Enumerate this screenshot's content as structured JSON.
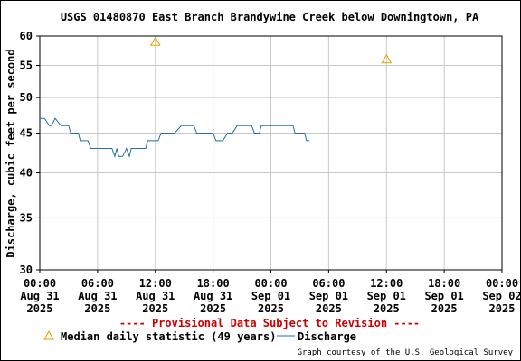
{
  "chart_data": {
    "type": "line",
    "title": "USGS 01480870 East Branch Brandywine Creek below Downingtown, PA",
    "ylabel": "Discharge, cubic feet per second",
    "xlabel": "",
    "y_scale": "log",
    "ylim": [
      30,
      60
    ],
    "y_ticks": [
      30,
      35,
      40,
      45,
      50,
      55,
      60
    ],
    "y_tick_labels": [
      "30",
      "35",
      "40",
      "45",
      "50",
      "55",
      "60"
    ],
    "x_range": [
      "2025-08-31 00:00",
      "2025-09-02 00:00"
    ],
    "x_ticks": [
      {
        "t": 0,
        "time": "00:00",
        "day": "Aug 31",
        "year": "2025"
      },
      {
        "t": 6,
        "time": "06:00",
        "day": "Aug 31",
        "year": "2025"
      },
      {
        "t": 12,
        "time": "12:00",
        "day": "Aug 31",
        "year": "2025"
      },
      {
        "t": 18,
        "time": "18:00",
        "day": "Aug 31",
        "year": "2025"
      },
      {
        "t": 24,
        "time": "00:00",
        "day": "Sep 01",
        "year": "2025"
      },
      {
        "t": 30,
        "time": "06:00",
        "day": "Sep 01",
        "year": "2025"
      },
      {
        "t": 36,
        "time": "12:00",
        "day": "Sep 01",
        "year": "2025"
      },
      {
        "t": 42,
        "time": "18:00",
        "day": "Sep 01",
        "year": "2025"
      },
      {
        "t": 48,
        "time": "00:00",
        "day": "Sep 02",
        "year": "2025"
      }
    ],
    "grid": true,
    "legend_position": "bottom",
    "series": [
      {
        "name": "Discharge",
        "color": "#1f6fa8",
        "style": "line",
        "x": [
          0,
          0.5,
          1.0,
          1.2,
          1.6,
          2.2,
          3.0,
          3.2,
          4.0,
          4.2,
          5.0,
          5.3,
          6.0,
          6.5,
          7.5,
          7.8,
          8.0,
          8.2,
          8.6,
          9.0,
          9.3,
          9.5,
          9.8,
          10.0,
          11.0,
          11.2,
          12.3,
          12.6,
          13.0,
          14.0,
          14.7,
          15.0,
          16.0,
          16.3,
          17.0,
          18.0,
          18.3,
          19.0,
          19.5,
          20.0,
          20.5,
          21.0,
          22.0,
          22.3,
          22.8,
          23.0,
          24.0,
          25.0,
          25.5,
          26.3,
          26.5,
          27.0,
          27.5,
          27.7,
          28.0
        ],
        "y": [
          47,
          47,
          46,
          46,
          47,
          46,
          46,
          45,
          45,
          44,
          44,
          43,
          43,
          43,
          43,
          42,
          43,
          42,
          42,
          43,
          42,
          43,
          43,
          43,
          43,
          44,
          44,
          45,
          45,
          45,
          46,
          46,
          46,
          45,
          45,
          45,
          44,
          44,
          45,
          45,
          46,
          46,
          46,
          45,
          45,
          46,
          46,
          46,
          46,
          46,
          45,
          45,
          45,
          44,
          44
        ]
      },
      {
        "name": "Median daily statistic (49 years)",
        "color": "#e8a000",
        "style": "triangle-marker",
        "x": [
          12,
          36
        ],
        "y": [
          59,
          56
        ]
      }
    ]
  },
  "notice": "---- Provisional Data Subject to Revision ----",
  "legend": {
    "median_label": "Median daily statistic (49 years)",
    "discharge_label": "Discharge"
  },
  "courtesy": "Graph courtesy of the U.S. Geological Survey",
  "colors": {
    "grid": "#c8c8c8",
    "notice": "#cc0000",
    "discharge": "#1f6fa8",
    "median": "#e8a000"
  }
}
